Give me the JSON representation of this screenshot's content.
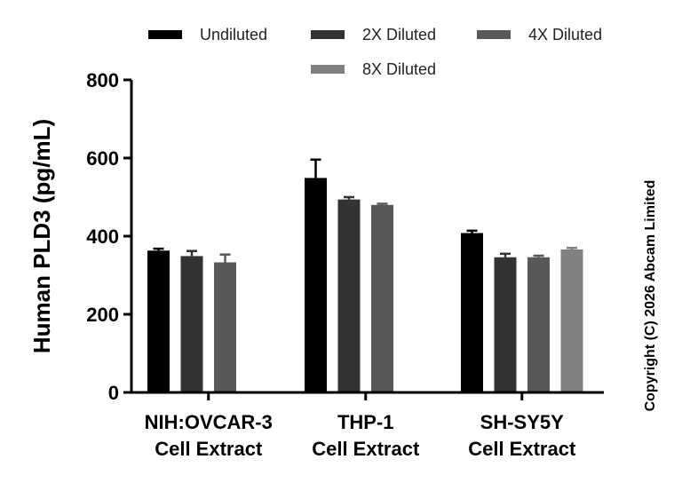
{
  "chart_data": {
    "type": "bar",
    "ylabel": "Human PLD3 (pg/mL)",
    "ylim": [
      0,
      800
    ],
    "yticks": [
      "0",
      "200",
      "400",
      "600",
      "800"
    ],
    "categories": [
      [
        "NIH:OVCAR-3",
        "Cell Extract"
      ],
      [
        "THP-1",
        "Cell Extract"
      ],
      [
        "SH-SY5Y",
        "Cell Extract"
      ]
    ],
    "series": [
      {
        "name": "Undiluted",
        "color": "#000000",
        "values": [
          363,
          549,
          408
        ],
        "errors": [
          5,
          47,
          6
        ]
      },
      {
        "name": "2X Diluted",
        "color": "#333333",
        "values": [
          349,
          494,
          346
        ],
        "errors": [
          13,
          6,
          9
        ]
      },
      {
        "name": "4X Diluted",
        "color": "#595959",
        "values": [
          333,
          480,
          346
        ],
        "errors": [
          20,
          3,
          4
        ]
      },
      {
        "name": "8X Diluted",
        "color": "#808080",
        "values": [
          null,
          null,
          366
        ],
        "errors": [
          null,
          null,
          4
        ]
      }
    ],
    "legend_position": "top",
    "grid": false,
    "annotation": "Copyright (C) 2026 Abcam Limited"
  }
}
